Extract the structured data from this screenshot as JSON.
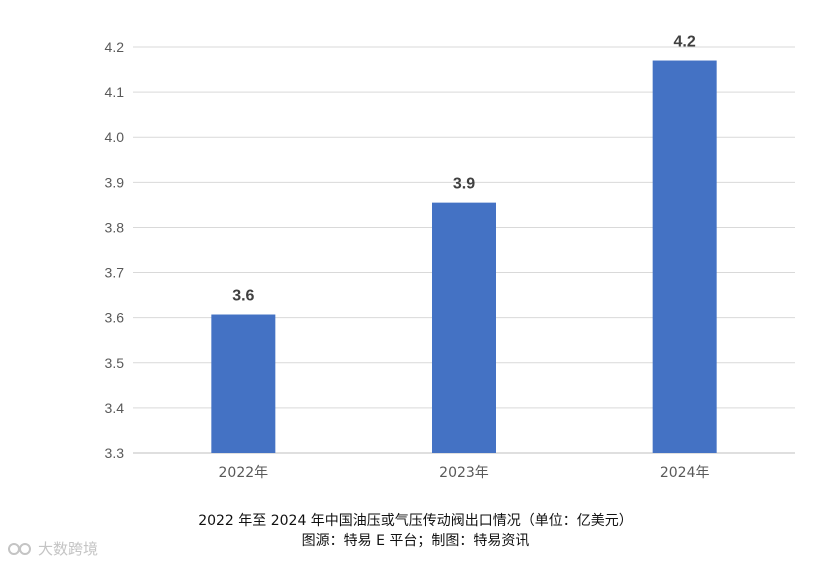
{
  "chart_data": {
    "type": "bar",
    "categories": [
      "2022年",
      "2023年",
      "2024年"
    ],
    "values": [
      3.6,
      3.9,
      4.2
    ],
    "data_labels": [
      "3.6",
      "3.9",
      "4.2"
    ],
    "plotted_values": [
      3.607,
      3.855,
      4.17
    ],
    "ylim": [
      3.3,
      4.2
    ],
    "yticks": [
      "3.3",
      "3.4",
      "3.5",
      "3.6",
      "3.7",
      "3.8",
      "3.9",
      "4.0",
      "4.1",
      "4.2"
    ],
    "ytick_values": [
      3.3,
      3.4,
      3.5,
      3.6,
      3.7,
      3.8,
      3.9,
      4.0,
      4.1,
      4.2
    ],
    "grid": true,
    "bar_color": "#4472C4",
    "title": "",
    "xlabel": "",
    "ylabel": ""
  },
  "caption": {
    "line1": "2022 年至 2024 年中国油压或气压传动阀出口情况（单位：亿美元）",
    "line2": "图源：特易 E 平台；制图：特易资讯"
  },
  "watermark": {
    "text": "大数跨境"
  }
}
